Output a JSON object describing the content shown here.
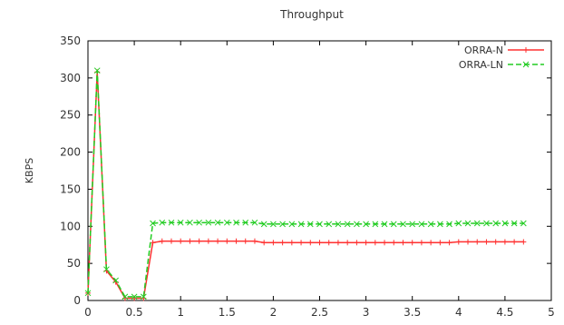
{
  "chart_data": {
    "type": "line",
    "title": "Throughput",
    "xlabel": "",
    "ylabel": "KBPS",
    "xlim": [
      0,
      5
    ],
    "ylim": [
      0,
      350
    ],
    "xticks": [
      {
        "value": 0,
        "label": "0"
      },
      {
        "value": 0.5,
        "label": "0.5"
      },
      {
        "value": 1,
        "label": "1"
      },
      {
        "value": 1.5,
        "label": "1.5"
      },
      {
        "value": 2,
        "label": "2"
      },
      {
        "value": 2.5,
        "label": "2.5"
      },
      {
        "value": 3,
        "label": "3"
      },
      {
        "value": 3.5,
        "label": "3.5"
      },
      {
        "value": 4,
        "label": "4"
      },
      {
        "value": 4.5,
        "label": "4.5"
      },
      {
        "value": 5,
        "label": "5"
      }
    ],
    "yticks": [
      {
        "value": 0,
        "label": "0"
      },
      {
        "value": 50,
        "label": "50"
      },
      {
        "value": 100,
        "label": "100"
      },
      {
        "value": 150,
        "label": "150"
      },
      {
        "value": 200,
        "label": "200"
      },
      {
        "value": 250,
        "label": "250"
      },
      {
        "value": 300,
        "label": "300"
      },
      {
        "value": 350,
        "label": "350"
      }
    ],
    "grid": false,
    "legend_position": "top-right",
    "series": [
      {
        "name": "ORRA-N",
        "color": "#ff3030",
        "dash": "solid",
        "marker": "plus",
        "x": [
          0,
          0.1,
          0.2,
          0.3,
          0.4,
          0.5,
          0.6,
          0.7,
          0.8,
          0.9,
          1.0,
          1.1,
          1.2,
          1.3,
          1.4,
          1.5,
          1.6,
          1.7,
          1.8,
          1.9,
          2.0,
          2.1,
          2.2,
          2.3,
          2.4,
          2.5,
          2.6,
          2.7,
          2.8,
          2.9,
          3.0,
          3.1,
          3.2,
          3.3,
          3.4,
          3.5,
          3.6,
          3.7,
          3.8,
          3.9,
          4.0,
          4.1,
          4.2,
          4.3,
          4.4,
          4.5,
          4.6,
          4.7
        ],
        "y": [
          10,
          308,
          40,
          25,
          3,
          3,
          3,
          78,
          80,
          80,
          80,
          80,
          80,
          80,
          80,
          80,
          80,
          80,
          80,
          78,
          78,
          78,
          78,
          78,
          78,
          78,
          78,
          78,
          78,
          78,
          78,
          78,
          78,
          78,
          78,
          78,
          78,
          78,
          78,
          78,
          79,
          79,
          79,
          79,
          79,
          79,
          79,
          79
        ]
      },
      {
        "name": "ORRA-LN",
        "color": "#22cc22",
        "dash": "dashed",
        "marker": "x",
        "x": [
          0,
          0.1,
          0.2,
          0.3,
          0.4,
          0.5,
          0.6,
          0.7,
          0.8,
          0.9,
          1.0,
          1.1,
          1.2,
          1.3,
          1.4,
          1.5,
          1.6,
          1.7,
          1.8,
          1.9,
          2.0,
          2.1,
          2.2,
          2.3,
          2.4,
          2.5,
          2.6,
          2.7,
          2.8,
          2.9,
          3.0,
          3.1,
          3.2,
          3.3,
          3.4,
          3.5,
          3.6,
          3.7,
          3.8,
          3.9,
          4.0,
          4.1,
          4.2,
          4.3,
          4.4,
          4.5,
          4.6,
          4.7
        ],
        "y": [
          10,
          310,
          42,
          27,
          5,
          5,
          5,
          104,
          105,
          105,
          105,
          105,
          105,
          105,
          105,
          105,
          105,
          105,
          105,
          103,
          103,
          103,
          103,
          103,
          103,
          103,
          103,
          103,
          103,
          103,
          103,
          103,
          103,
          103,
          103,
          103,
          103,
          103,
          103,
          103,
          104,
          104,
          104,
          104,
          104,
          104,
          104,
          104
        ]
      }
    ]
  }
}
